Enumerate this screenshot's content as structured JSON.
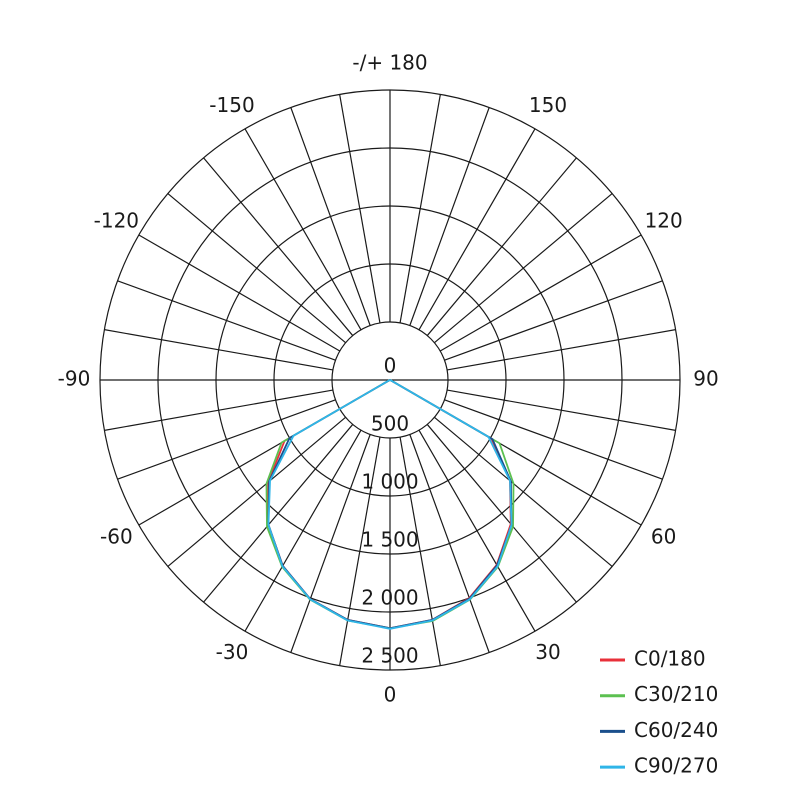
{
  "chart_data": {
    "type": "polar",
    "angles": [
      -90,
      -80,
      -70,
      -60,
      -50,
      -40,
      -30,
      -20,
      -10,
      0,
      10,
      20,
      30,
      40,
      50,
      60,
      70,
      80,
      90
    ],
    "series": [
      {
        "name": "C0/180",
        "color": "#e8303a",
        "values": [
          0,
          0,
          5,
          1050,
          1370,
          1630,
          1850,
          2010,
          2100,
          2140,
          2100,
          2000,
          1840,
          1620,
          1350,
          1010,
          5,
          0,
          0
        ]
      },
      {
        "name": "C30/210",
        "color": "#5cc050",
        "values": [
          0,
          0,
          5,
          1080,
          1390,
          1650,
          1860,
          2015,
          2105,
          2140,
          2110,
          2015,
          1860,
          1650,
          1390,
          1090,
          5,
          0,
          0
        ]
      },
      {
        "name": "C60/240",
        "color": "#1a4f8c",
        "values": [
          0,
          0,
          5,
          1000,
          1360,
          1630,
          1850,
          2010,
          2100,
          2140,
          2100,
          2005,
          1845,
          1630,
          1360,
          1020,
          5,
          0,
          0
        ]
      },
      {
        "name": "C90/270",
        "color": "#2fb5e8",
        "values": [
          0,
          0,
          5,
          960,
          1350,
          1630,
          1855,
          2012,
          2105,
          2145,
          2105,
          2012,
          1855,
          1630,
          1350,
          980,
          5,
          0,
          0
        ]
      }
    ],
    "rlim": [
      0,
      2500
    ],
    "rticks": [
      0,
      500,
      {
        "value": 1000,
        "label": "1 000"
      },
      {
        "value": 1500,
        "label": "1 500"
      },
      {
        "value": 2000,
        "label": "2 000"
      },
      {
        "value": 2500,
        "label": "2 500"
      }
    ],
    "thetaticks": [
      0,
      30,
      60,
      90,
      120,
      150,
      {
        "value": 180,
        "label": "-/+ 180"
      },
      -150,
      -120,
      -90,
      -60,
      -30
    ]
  }
}
